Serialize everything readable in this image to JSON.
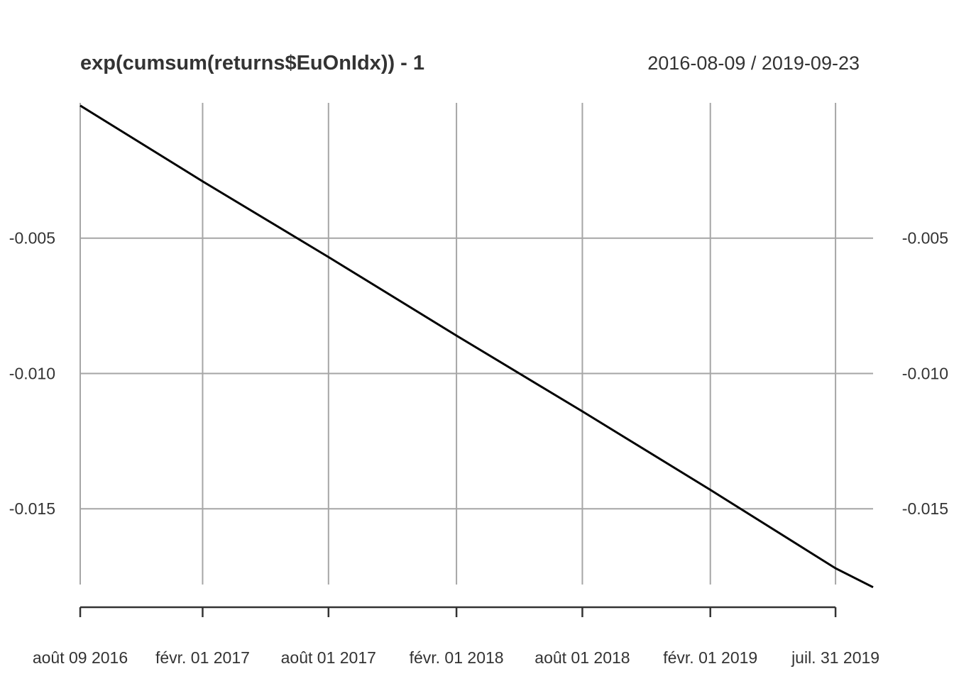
{
  "chart_data": {
    "type": "line",
    "title": "exp(cumsum(returns$EuOnIdx)) - 1",
    "date_range_label": "2016-08-09 / 2019-09-23",
    "x_start": "2016-08-09",
    "x_end": "2019-09-23",
    "ylim": [
      -0.0178,
      0.0
    ],
    "y_ticks": [
      {
        "value": -0.005,
        "label": "-0.005"
      },
      {
        "value": -0.01,
        "label": "-0.010"
      },
      {
        "value": -0.015,
        "label": "-0.015"
      }
    ],
    "x_ticks": [
      {
        "date": "2016-08-09",
        "label": "août 09 2016"
      },
      {
        "date": "2017-02-01",
        "label": "févr. 01 2017"
      },
      {
        "date": "2017-08-01",
        "label": "août 01 2017"
      },
      {
        "date": "2018-02-01",
        "label": "févr. 01 2018"
      },
      {
        "date": "2018-08-01",
        "label": "août 01 2018"
      },
      {
        "date": "2019-02-01",
        "label": "févr. 01 2019"
      },
      {
        "date": "2019-07-31",
        "label": "juil. 31 2019"
      }
    ],
    "grid": true,
    "series": [
      {
        "color": "#000000",
        "points": [
          {
            "x": "2016-08-09",
            "y": -0.0001
          },
          {
            "x": "2017-02-01",
            "y": -0.0029
          },
          {
            "x": "2017-08-01",
            "y": -0.0057
          },
          {
            "x": "2018-02-01",
            "y": -0.0086
          },
          {
            "x": "2018-08-01",
            "y": -0.0114
          },
          {
            "x": "2019-02-01",
            "y": -0.0143
          },
          {
            "x": "2019-07-31",
            "y": -0.0172
          },
          {
            "x": "2019-09-23",
            "y": -0.0179
          }
        ]
      }
    ]
  }
}
